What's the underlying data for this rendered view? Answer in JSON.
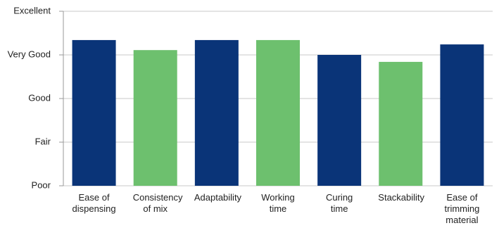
{
  "chart_data": {
    "type": "bar",
    "categories": [
      "Ease of dispensing",
      "Consistency of mix",
      "Adaptability",
      "Working time",
      "Curing time",
      "Stackability",
      "Ease of trimming material"
    ],
    "values": [
      3.34,
      3.11,
      3.34,
      3.34,
      3.0,
      2.84,
      3.24
    ],
    "colors": [
      "#0a3478",
      "#6dc06e",
      "#0a3478",
      "#6dc06e",
      "#0a3478",
      "#6dc06e",
      "#0a3478"
    ],
    "ylim": [
      0,
      4
    ],
    "yticks": [
      {
        "value": 0,
        "label": "Poor"
      },
      {
        "value": 1,
        "label": "Fair"
      },
      {
        "value": 2,
        "label": "Good"
      },
      {
        "value": 3,
        "label": "Very Good"
      },
      {
        "value": 4,
        "label": "Excellent"
      }
    ],
    "grid": true
  }
}
